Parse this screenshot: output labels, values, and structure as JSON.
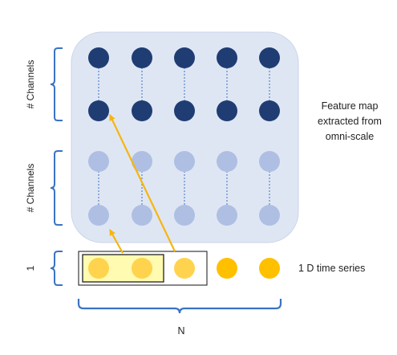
{
  "labels": {
    "channels_top": "# Channels",
    "channels_bottom": "# Channels",
    "one": "1",
    "n": "N",
    "feature_map": [
      "Feature map",
      "extracted from",
      "omni-scale"
    ],
    "time_series": "1 D time series"
  },
  "colors": {
    "panel": "#dfe6f3",
    "panel_border": "#c9d4e8",
    "dark_node": "#1f3d73",
    "light_node": "#aebfe3",
    "yellow_node": "#ffc000",
    "yellow_pale": "#ffd34d",
    "highlight_fill": "#fffbb0",
    "bracket": "#3a73c4",
    "arrow": "#f5b60f",
    "dashed_line": "#3a73c4"
  },
  "structure": {
    "columns": 5,
    "dark_rows": 2,
    "light_rows": 2,
    "time_series_points": 5,
    "kernel_size": 2
  }
}
